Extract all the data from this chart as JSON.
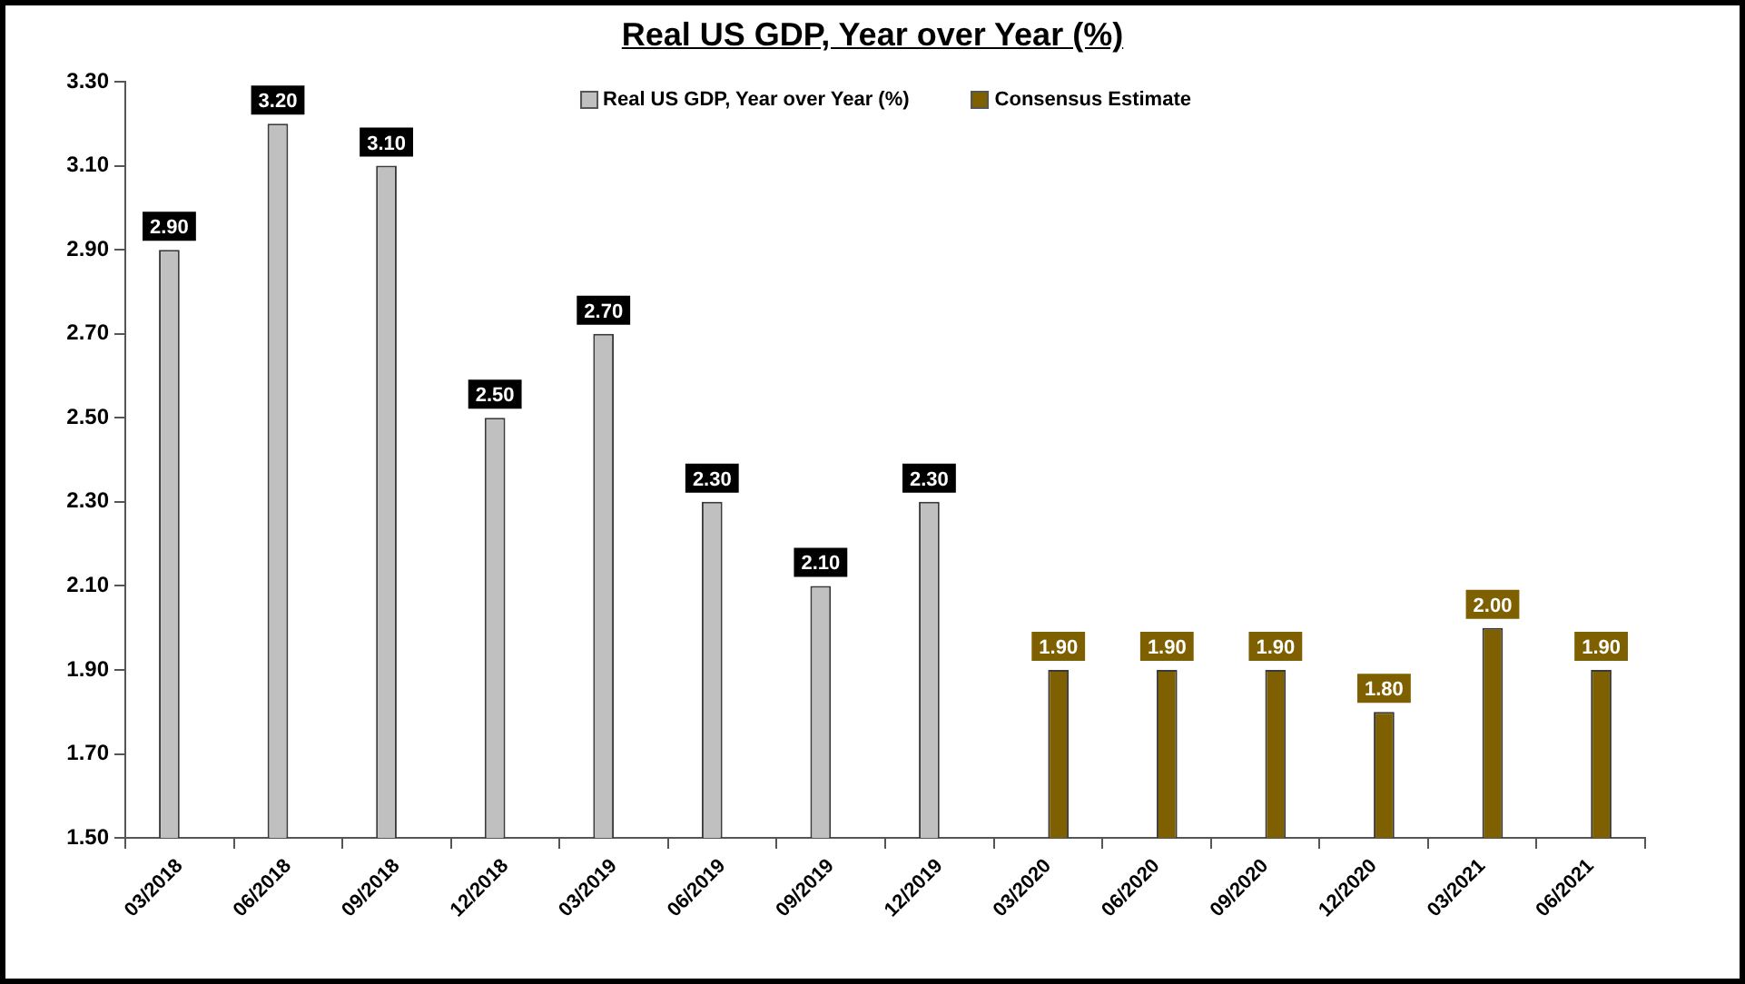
{
  "chart_data": {
    "type": "bar",
    "title": "Real US GDP, Year over Year (%)",
    "categories": [
      "03/2018",
      "06/2018",
      "09/2018",
      "12/2018",
      "03/2019",
      "06/2019",
      "09/2019",
      "12/2019",
      "03/2020",
      "06/2020",
      "09/2020",
      "12/2020",
      "03/2021",
      "06/2021"
    ],
    "series": [
      {
        "name": "Real US GDP, Year over Year (%)",
        "color": "#c0c0c0",
        "values": [
          2.9,
          3.2,
          3.1,
          2.5,
          2.7,
          2.3,
          2.1,
          2.3,
          null,
          null,
          null,
          null,
          null,
          null
        ],
        "value_labels": [
          "2.90",
          "3.20",
          "3.10",
          "2.50",
          "2.70",
          "2.30",
          "2.10",
          "2.30",
          null,
          null,
          null,
          null,
          null,
          null
        ]
      },
      {
        "name": "Consensus Estimate",
        "color": "#7f6000",
        "values": [
          null,
          null,
          null,
          null,
          null,
          null,
          null,
          null,
          1.9,
          1.9,
          1.9,
          1.8,
          2.0,
          1.9
        ],
        "value_labels": [
          null,
          null,
          null,
          null,
          null,
          null,
          null,
          null,
          "1.90",
          "1.90",
          "1.90",
          "1.80",
          "2.00",
          "1.90"
        ]
      }
    ],
    "ylim": [
      1.5,
      3.3
    ],
    "yticks": [
      {
        "value": 1.5,
        "label": "1.50"
      },
      {
        "value": 1.7,
        "label": "1.70"
      },
      {
        "value": 1.9,
        "label": "1.90"
      },
      {
        "value": 2.1,
        "label": "2.10"
      },
      {
        "value": 2.3,
        "label": "2.30"
      },
      {
        "value": 2.5,
        "label": "2.50"
      },
      {
        "value": 2.7,
        "label": "2.70"
      },
      {
        "value": 2.9,
        "label": "2.90"
      },
      {
        "value": 3.1,
        "label": "3.10"
      },
      {
        "value": 3.3,
        "label": "3.30"
      }
    ],
    "grid": false,
    "legend": "top"
  }
}
